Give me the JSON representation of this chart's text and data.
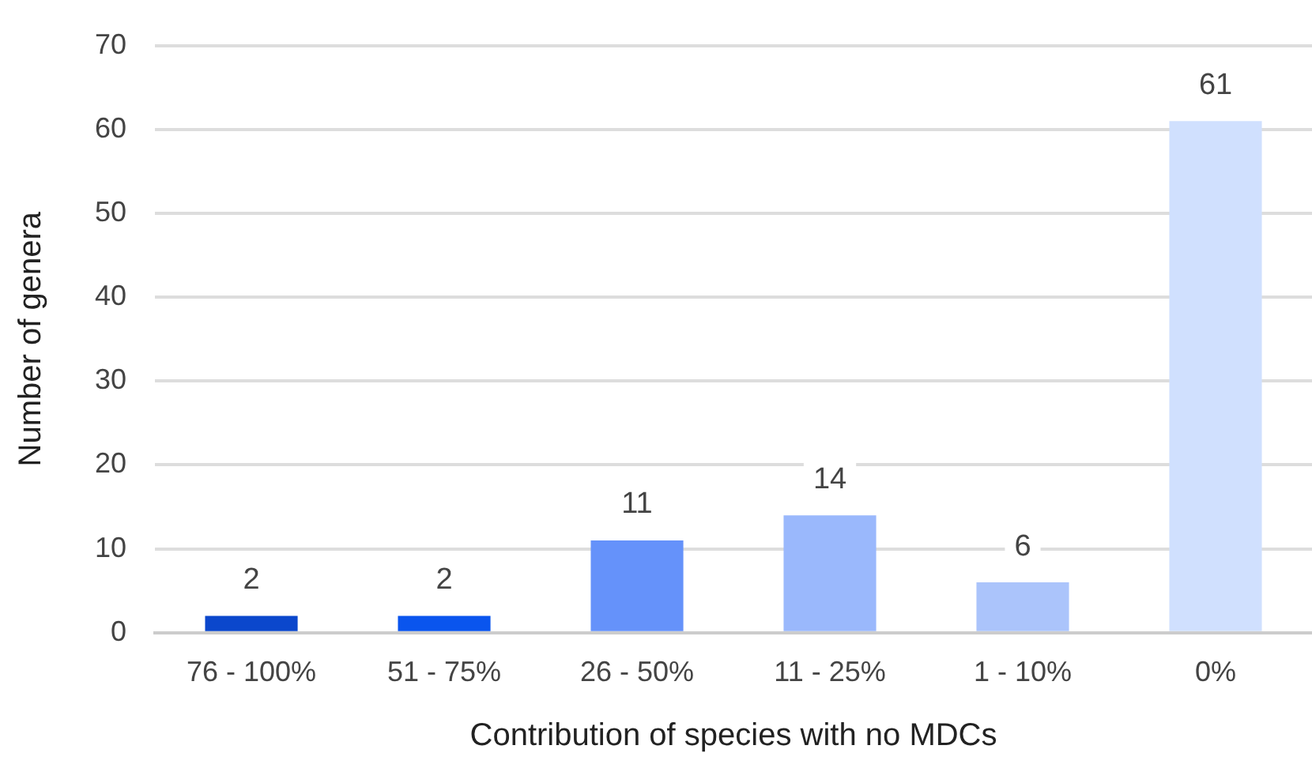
{
  "chart_data": {
    "type": "bar",
    "xlabel": "Contribution of species with no MDCs",
    "ylabel": "Number of genera",
    "categories": [
      "76 - 100%",
      "51 - 75%",
      "26 - 50%",
      "11 - 25%",
      "1 - 10%",
      "0%"
    ],
    "values": [
      2,
      2,
      11,
      14,
      6,
      61
    ],
    "colors": [
      "#0b47cc",
      "#0a55ee",
      "#6592fa",
      "#9ab8fc",
      "#abc4fb",
      "#d0e0fe"
    ],
    "ylim": [
      0,
      70
    ],
    "yticks": [
      0,
      10,
      20,
      30,
      40,
      50,
      60,
      70
    ],
    "grid": "y",
    "data_labels": true
  }
}
